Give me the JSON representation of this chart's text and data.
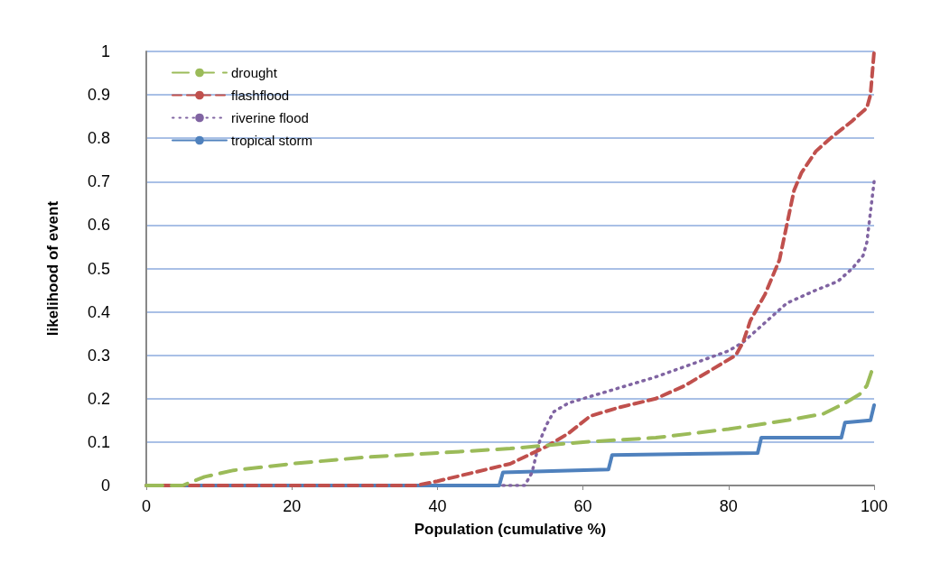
{
  "chart_data": {
    "type": "line",
    "xlabel": "Population (cumulative %)",
    "ylabel": "likelihood of event",
    "xlim": [
      0,
      100
    ],
    "xticks": [
      0,
      20,
      40,
      60,
      80,
      100
    ],
    "ylim": [
      0,
      1
    ],
    "yticks": [
      0,
      0.1,
      0.2,
      0.3,
      0.4,
      0.5,
      0.6,
      0.7,
      0.8,
      0.9,
      1
    ],
    "grid": "y",
    "legend": "top left",
    "marker": "none",
    "series": [
      {
        "name": "drought",
        "color": "#9bbb59",
        "line_style": "dashed",
        "x": [
          0,
          5,
          8,
          12,
          20,
          30,
          40,
          50,
          60,
          70,
          80,
          88,
          93,
          96,
          98,
          99,
          100
        ],
        "values": [
          0,
          0,
          0.02,
          0.035,
          0.05,
          0.065,
          0.075,
          0.085,
          0.1,
          0.11,
          0.13,
          0.15,
          0.165,
          0.19,
          0.21,
          0.23,
          0.28
        ]
      },
      {
        "name": "flashflood",
        "color": "#c0504d",
        "line_style": "dashed",
        "x": [
          0,
          37,
          40,
          45,
          50,
          55,
          58,
          61,
          65,
          70,
          74,
          78,
          81,
          82,
          83,
          85,
          87,
          88,
          89,
          90,
          92,
          94,
          97,
          99,
          99.5,
          100
        ],
        "values": [
          0,
          0,
          0.01,
          0.03,
          0.05,
          0.09,
          0.12,
          0.16,
          0.18,
          0.2,
          0.23,
          0.27,
          0.3,
          0.33,
          0.38,
          0.44,
          0.52,
          0.6,
          0.68,
          0.72,
          0.77,
          0.8,
          0.84,
          0.87,
          0.9,
          1.0
        ]
      },
      {
        "name": "riverine flood",
        "color": "#8064a2",
        "line_style": "dotted",
        "x": [
          49,
          52,
          53,
          54,
          55,
          56,
          58,
          62,
          66,
          70,
          75,
          80,
          82,
          84,
          86,
          88,
          92,
          95,
          97,
          98.5,
          99,
          99.5,
          100
        ],
        "values": [
          0,
          0,
          0.03,
          0.1,
          0.14,
          0.17,
          0.19,
          0.21,
          0.23,
          0.25,
          0.28,
          0.31,
          0.33,
          0.36,
          0.39,
          0.42,
          0.45,
          0.47,
          0.5,
          0.53,
          0.56,
          0.63,
          0.7
        ]
      },
      {
        "name": "tropical storm",
        "color": "#4f81bd",
        "line_style": "solid",
        "x": [
          0,
          48.5,
          49,
          63.5,
          64,
          84,
          84.5,
          95.5,
          96,
          99.5,
          100
        ],
        "values": [
          0,
          0,
          0.03,
          0.037,
          0.07,
          0.075,
          0.11,
          0.11,
          0.145,
          0.15,
          0.185
        ]
      }
    ]
  }
}
